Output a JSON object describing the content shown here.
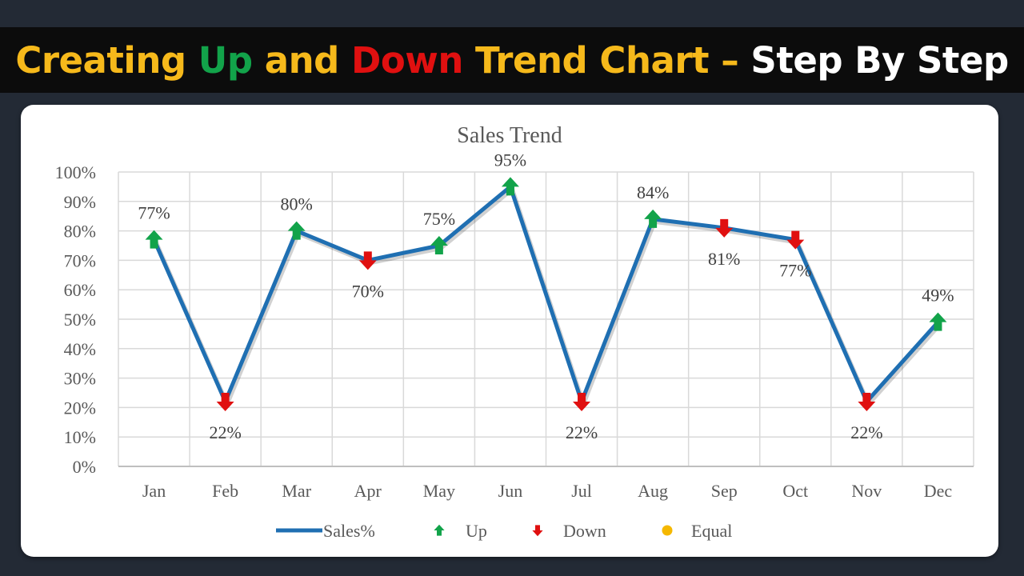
{
  "header": {
    "title_parts": [
      {
        "text": "Creating ",
        "color": "#f6b91b"
      },
      {
        "text": "Up",
        "color": "#12a34a"
      },
      {
        "text": " and ",
        "color": "#f6b91b"
      },
      {
        "text": "Down",
        "color": "#e01010"
      },
      {
        "text": " Trend Chart – ",
        "color": "#f6b91b"
      },
      {
        "text": "Step By Step",
        "color": "#ffffff"
      }
    ]
  },
  "colors": {
    "line": "#1f6fb2",
    "up": "#12a34a",
    "down": "#e01010",
    "equal": "#f5b800",
    "grid": "#d9d9d9",
    "text": "#595959"
  },
  "chart_data": {
    "type": "line",
    "title": "Sales Trend",
    "categories": [
      "Jan",
      "Feb",
      "Mar",
      "Apr",
      "May",
      "Jun",
      "Jul",
      "Aug",
      "Sep",
      "Oct",
      "Nov",
      "Dec"
    ],
    "series": [
      {
        "name": "Sales%",
        "values": [
          77,
          22,
          80,
          70,
          75,
          95,
          22,
          84,
          81,
          77,
          22,
          49
        ]
      }
    ],
    "data_labels": [
      "77%",
      "22%",
      "80%",
      "70%",
      "75%",
      "95%",
      "22%",
      "84%",
      "81%",
      "77%",
      "22%",
      "49%"
    ],
    "trend": [
      "up",
      "down",
      "up",
      "down",
      "up",
      "up",
      "down",
      "up",
      "down",
      "down",
      "down",
      "up"
    ],
    "label_position": [
      "above",
      "below",
      "above",
      "below",
      "above",
      "above",
      "below",
      "above",
      "below",
      "below",
      "below",
      "above"
    ],
    "ylim": [
      0,
      100
    ],
    "yticks": [
      "0%",
      "10%",
      "20%",
      "30%",
      "40%",
      "50%",
      "60%",
      "70%",
      "80%",
      "90%",
      "100%"
    ],
    "grid": true,
    "legend_position": "bottom",
    "legend": [
      {
        "key": "line",
        "label": "Sales%"
      },
      {
        "key": "up",
        "label": "Up"
      },
      {
        "key": "down",
        "label": "Down"
      },
      {
        "key": "equal",
        "label": "Equal"
      }
    ]
  }
}
